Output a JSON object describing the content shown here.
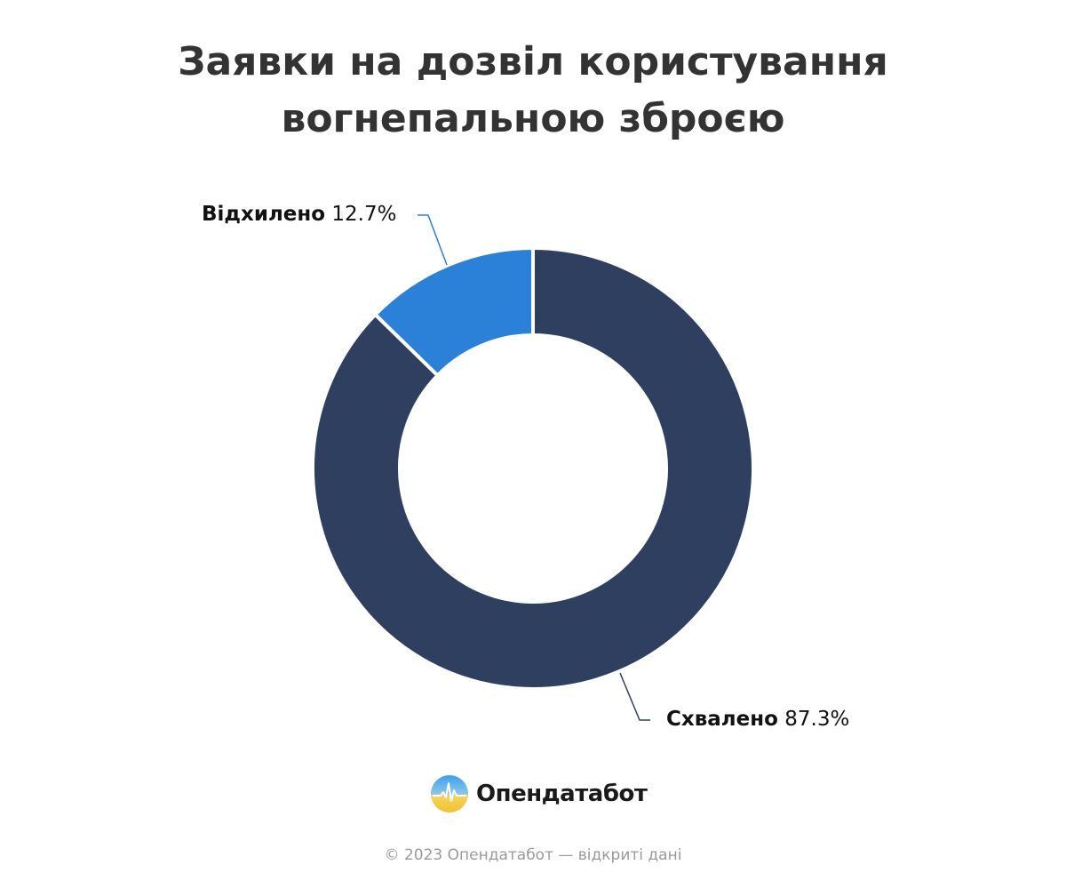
{
  "title": {
    "line1": "Заявки на дозвіл користування",
    "line2": "вогнепальною зброєю"
  },
  "chart_data": {
    "type": "pie",
    "subtype": "donut",
    "title": "Заявки на дозвіл користування вогнепальною зброєю",
    "categories": [
      "Схвалено",
      "Відхилено"
    ],
    "values": [
      87.3,
      12.7
    ],
    "unit": "%",
    "colors": [
      "#2f3f5f",
      "#2b80d8"
    ],
    "start_angle": "top, clockwise",
    "legend": "none (callout labels)"
  },
  "labels": {
    "approved": {
      "name": "Схвалено",
      "value": "87.3%"
    },
    "rejected": {
      "name": "Відхилено",
      "value": "12.7%"
    }
  },
  "brand": {
    "name": "Опендатабот"
  },
  "footer": {
    "text": "© 2023 Опендатабот — відкриті дані"
  },
  "colors": {
    "approved": "#2f3f5f",
    "rejected": "#2b80d8",
    "title": "#333333",
    "footer": "#9a9a9a"
  }
}
